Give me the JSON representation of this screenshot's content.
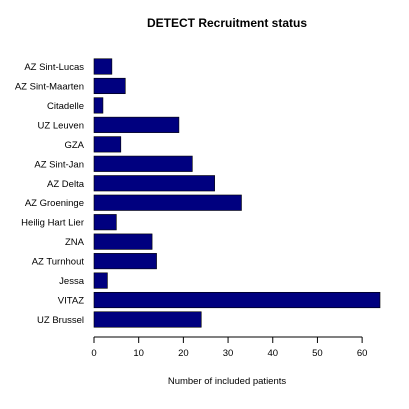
{
  "chart_data": {
    "type": "bar",
    "orientation": "horizontal",
    "title": "DETECT  Recruitment status",
    "xlabel": "Number of included patients",
    "ylabel": "",
    "categories": [
      "AZ Sint-Lucas",
      "AZ Sint-Maarten",
      "Citadelle",
      "UZ Leuven",
      "GZA",
      "AZ Sint-Jan",
      "AZ Delta",
      "AZ Groeninge",
      "Heilig Hart Lier",
      "ZNA",
      "AZ Turnhout",
      "Jessa",
      "VITAZ",
      "UZ Brussel"
    ],
    "values": [
      4,
      7,
      2,
      19,
      6,
      22,
      27,
      33,
      5,
      13,
      14,
      3,
      64,
      24
    ],
    "xlim": [
      0,
      64
    ],
    "xticks": [
      0,
      10,
      20,
      30,
      40,
      50,
      60
    ],
    "bar_color": "#00007f",
    "grid": false,
    "legend": "none"
  }
}
